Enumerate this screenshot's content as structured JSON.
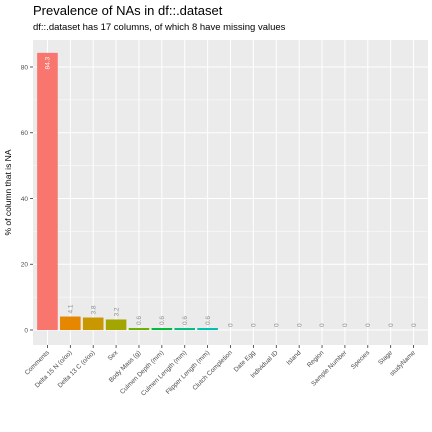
{
  "chart_data": {
    "type": "bar",
    "title": "Prevalence of NAs in df::.dataset",
    "subtitle": "df::.dataset has 17 columns, of which 8 have missing values",
    "xlabel": "",
    "ylabel": "% of column that is NA",
    "ylim": [
      0,
      90
    ],
    "yticks": [
      0,
      20,
      40,
      60,
      80
    ],
    "categories": [
      "Comments",
      "Delta 15 N (o/oo)",
      "Delta 13 C (o/oo)",
      "Sex",
      "Body Mass (g)",
      "Culmen Depth (mm)",
      "Culmen Length (mm)",
      "Flipper Length (mm)",
      "Clutch Completion",
      "Date Egg",
      "Individual ID",
      "Island",
      "Region",
      "Sample Number",
      "Species",
      "Stage",
      "studyName"
    ],
    "values": [
      84.3,
      4.1,
      3.8,
      3.2,
      0.6,
      0.6,
      0.6,
      0.6,
      0,
      0,
      0,
      0,
      0,
      0,
      0,
      0,
      0
    ],
    "labels": [
      "84.3",
      "4.1",
      "3.8",
      "3.2",
      "0.6",
      "0.6",
      "0.6",
      "0.6",
      "0",
      "0",
      "0",
      "0",
      "0",
      "0",
      "0",
      "0",
      "0"
    ],
    "colors": [
      "#F8766D",
      "#E58700",
      "#C99800",
      "#A3A500",
      "#6BB100",
      "#00BA38",
      "#00BF7D",
      "#00C0AF",
      "#00BCD8",
      "#00B0F6",
      "#619CFF",
      "#B983FF",
      "#E76BF3",
      "#FD61D1",
      "#FF67A4",
      "#F8766D",
      "#E58700"
    ],
    "grid": true,
    "legend": "none",
    "panel_background": "#EBEBEB"
  }
}
